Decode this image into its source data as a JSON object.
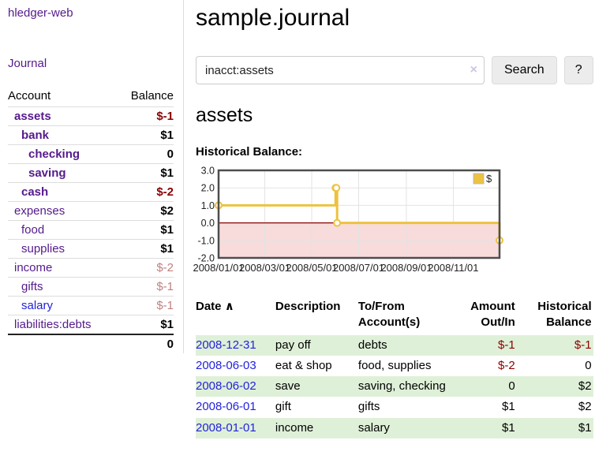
{
  "sidebar": {
    "brand": "hledger-web",
    "nav_journal": "Journal",
    "accounts_table": {
      "account_header": "Account",
      "balance_header": "Balance",
      "rows": [
        {
          "name": "assets",
          "indent": 0,
          "bold": true,
          "balance": "$-1",
          "balance_class": "neg"
        },
        {
          "name": "bank",
          "indent": 1,
          "bold": true,
          "balance": "$1",
          "balance_class": ""
        },
        {
          "name": "checking",
          "indent": 2,
          "bold": true,
          "balance": "0",
          "balance_class": ""
        },
        {
          "name": "saving",
          "indent": 2,
          "bold": true,
          "balance": "$1",
          "balance_class": ""
        },
        {
          "name": "cash",
          "indent": 1,
          "bold": true,
          "balance": "$-2",
          "balance_class": "neg"
        },
        {
          "name": "expenses",
          "indent": 0,
          "bold": false,
          "balance": "$2",
          "balance_class": ""
        },
        {
          "name": "food",
          "indent": 1,
          "bold": false,
          "balance": "$1",
          "balance_class": ""
        },
        {
          "name": "supplies",
          "indent": 1,
          "bold": false,
          "balance": "$1",
          "balance_class": ""
        },
        {
          "name": "income",
          "indent": 0,
          "bold": false,
          "balance": "$-2",
          "balance_class": "negfade"
        },
        {
          "name": "gifts",
          "indent": 1,
          "bold": false,
          "balance": "$-1",
          "balance_class": "negfade"
        },
        {
          "name": "salary",
          "indent": 1,
          "bold": false,
          "link_color": "blue",
          "balance": "$-1",
          "balance_class": "negfade"
        },
        {
          "name": "liabilities:debts",
          "indent": 0,
          "bold": false,
          "balance": "$1",
          "balance_class": ""
        }
      ],
      "total": "0"
    }
  },
  "header": {
    "title": "sample.journal"
  },
  "search": {
    "value": "inacct:assets",
    "clear_icon": "×",
    "button_label": "Search",
    "help_label": "?"
  },
  "account_page": {
    "title": "assets",
    "chart_label": "Historical Balance:"
  },
  "chart_data": {
    "type": "line",
    "step": true,
    "title": "Historical Balance",
    "legend": {
      "label": "$",
      "position": "top-right"
    },
    "x_range": [
      "2008-01-01",
      "2008-12-31"
    ],
    "ylim": [
      -2,
      3
    ],
    "yticks": [
      {
        "label": "3.0",
        "value": 3
      },
      {
        "label": "2.0",
        "value": 2
      },
      {
        "label": "1.0",
        "value": 1
      },
      {
        "label": "0.0",
        "value": 0
      },
      {
        "label": "-1.0",
        "value": -1
      },
      {
        "label": "-2.0",
        "value": -2
      }
    ],
    "xticks": [
      {
        "label": "2008/01/01",
        "date": "2008-01-01"
      },
      {
        "label": "2008/03/01",
        "date": "2008-03-01"
      },
      {
        "label": "2008/05/01",
        "date": "2008-05-01"
      },
      {
        "label": "2008/07/01",
        "date": "2008-07-01"
      },
      {
        "label": "2008/09/01",
        "date": "2008-09-01"
      },
      {
        "label": "2008/11/01",
        "date": "2008-11-01"
      }
    ],
    "series": [
      {
        "name": "$",
        "color": "#edc240",
        "marker_fill": "#ffffff",
        "points": [
          {
            "date": "2008-01-01",
            "value": 1
          },
          {
            "date": "2008-06-01",
            "value": 2
          },
          {
            "date": "2008-06-02",
            "value": 2
          },
          {
            "date": "2008-06-03",
            "value": 0
          },
          {
            "date": "2008-12-31",
            "value": -1
          }
        ]
      }
    ],
    "colors": {
      "negative_fill": "#f8dbdb",
      "zero_line": "#8b0000",
      "grid": "#e3e3e3",
      "border": "#4d4d4d",
      "tick_text": "#222222"
    },
    "grid": true
  },
  "register_table": {
    "columns": [
      "Date",
      "Description",
      "To/From Account(s)",
      "Amount Out/In",
      "Historical Balance"
    ],
    "sort_indicator": "∧",
    "rows": [
      {
        "date": "2008-12-31",
        "description": "pay off",
        "accounts": "debts",
        "amount": "$-1",
        "amount_negative": true,
        "balance": "$-1",
        "balance_negative": true,
        "highlight": true
      },
      {
        "date": "2008-06-03",
        "description": "eat & shop",
        "accounts": "food, supplies",
        "amount": "$-2",
        "amount_negative": true,
        "balance": "0",
        "balance_negative": false,
        "highlight": false
      },
      {
        "date": "2008-06-02",
        "description": "save",
        "accounts": "saving, checking",
        "amount": "0",
        "amount_negative": false,
        "balance": "$2",
        "balance_negative": false,
        "highlight": true
      },
      {
        "date": "2008-06-01",
        "description": "gift",
        "accounts": "gifts",
        "amount": "$1",
        "amount_negative": false,
        "balance": "$2",
        "balance_negative": false,
        "highlight": false
      },
      {
        "date": "2008-01-01",
        "description": "income",
        "accounts": "salary",
        "amount": "$1",
        "amount_negative": false,
        "balance": "$1",
        "balance_negative": false,
        "highlight": true
      }
    ]
  }
}
